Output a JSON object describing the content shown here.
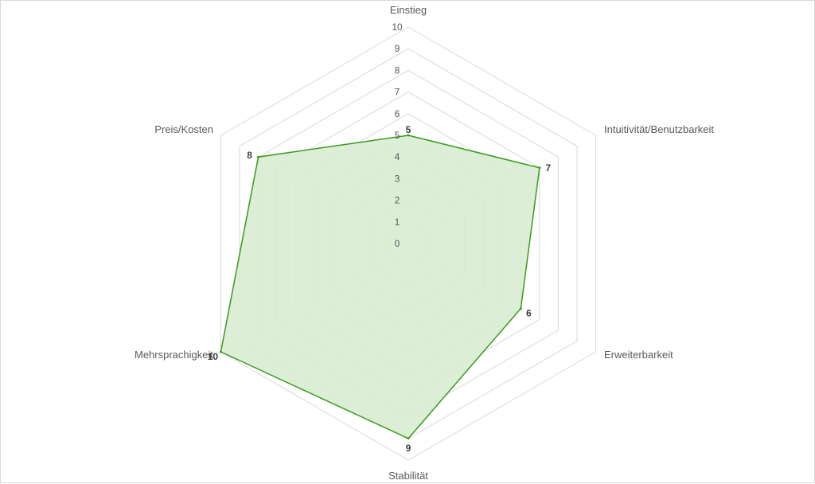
{
  "chart_data": {
    "type": "radar",
    "categories": [
      "Einstieg",
      "Intuitivität/Benutzbarkeit",
      "Erweiterbarkeit",
      "Stabilität",
      "Mehrsprachigkeit",
      "Preis/Kosten"
    ],
    "series": [
      {
        "values": [
          5,
          7,
          6,
          9,
          10,
          8
        ]
      }
    ],
    "rlim": [
      0,
      10
    ],
    "ticks": [
      "0",
      "1",
      "2",
      "3",
      "4",
      "5",
      "6",
      "7",
      "8",
      "9",
      "10"
    ],
    "data_labels": [
      "5",
      "7",
      "6",
      "9",
      "10",
      "8"
    ],
    "grid": true,
    "legend": "none",
    "colors": {
      "series_line": "#3a9a1e",
      "series_fill": "#d6ebcf",
      "grid": "#d9d9d9",
      "text": "#595959"
    }
  }
}
